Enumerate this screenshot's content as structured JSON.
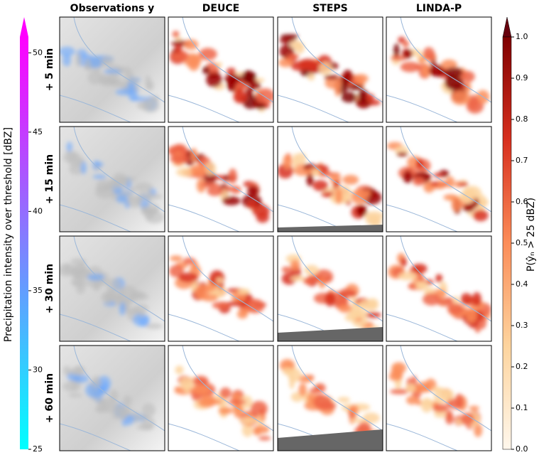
{
  "columns": [
    "Observations y",
    "DEUCE",
    "STEPS",
    "LINDA-P"
  ],
  "rows": [
    "+ 5 min",
    "+ 15 min",
    "+ 30 min",
    "+ 60 min"
  ],
  "left_colorbar": {
    "label": "Precipitation intensity over threshold [dBZ]",
    "lim": [
      25,
      51
    ],
    "ticks": [
      25,
      30,
      35,
      40,
      45,
      50
    ]
  },
  "right_colorbar": {
    "label": "P(ŷₙ > 25 dBZ)",
    "lim": [
      0,
      1
    ],
    "ticks": [
      {
        "value": 0,
        "label": "0.0"
      },
      {
        "value": 0.1,
        "label": "0.1"
      },
      {
        "value": 0.2,
        "label": "0.2"
      },
      {
        "value": 0.3,
        "label": "0.3"
      },
      {
        "value": 0.4,
        "label": "0.4"
      },
      {
        "value": 0.5,
        "label": "0.5"
      },
      {
        "value": 0.6,
        "label": "0.6"
      },
      {
        "value": 0.7,
        "label": "0.7"
      },
      {
        "value": 0.8,
        "label": "0.8"
      },
      {
        "value": 0.9,
        "label": "0.9"
      },
      {
        "value": 1,
        "label": "1.0"
      }
    ]
  }
}
